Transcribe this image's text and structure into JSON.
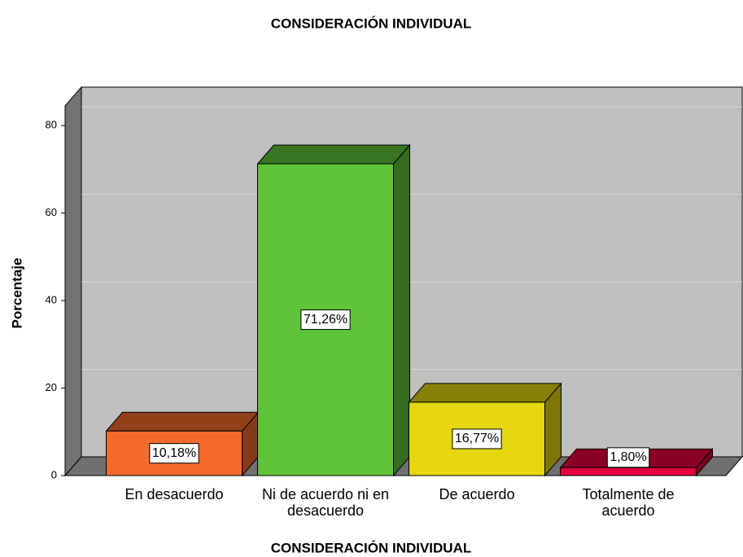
{
  "chart_data": {
    "type": "bar3d",
    "title": "CONSIDERACIÓN INDIVIDUAL",
    "x_label": "CONSIDERACIÓN INDIVIDUAL",
    "y_label": "Porcentaje",
    "categories": [
      "En desacuerdo",
      "Ni de acuerdo ni en desacuerdo",
      "De acuerdo",
      "Totalmente de acuerdo"
    ],
    "values": [
      10.18,
      71.26,
      16.77,
      1.8
    ],
    "value_labels": [
      "10,18%",
      "71,26%",
      "16,77%",
      "1,80%"
    ],
    "colors": [
      "#f26b2c",
      "#5ec43a",
      "#e5d60e",
      "#e3003b"
    ],
    "ylim": [
      0,
      84.5
    ],
    "yticks": [
      0,
      20,
      40,
      60,
      80
    ],
    "grid": true
  }
}
